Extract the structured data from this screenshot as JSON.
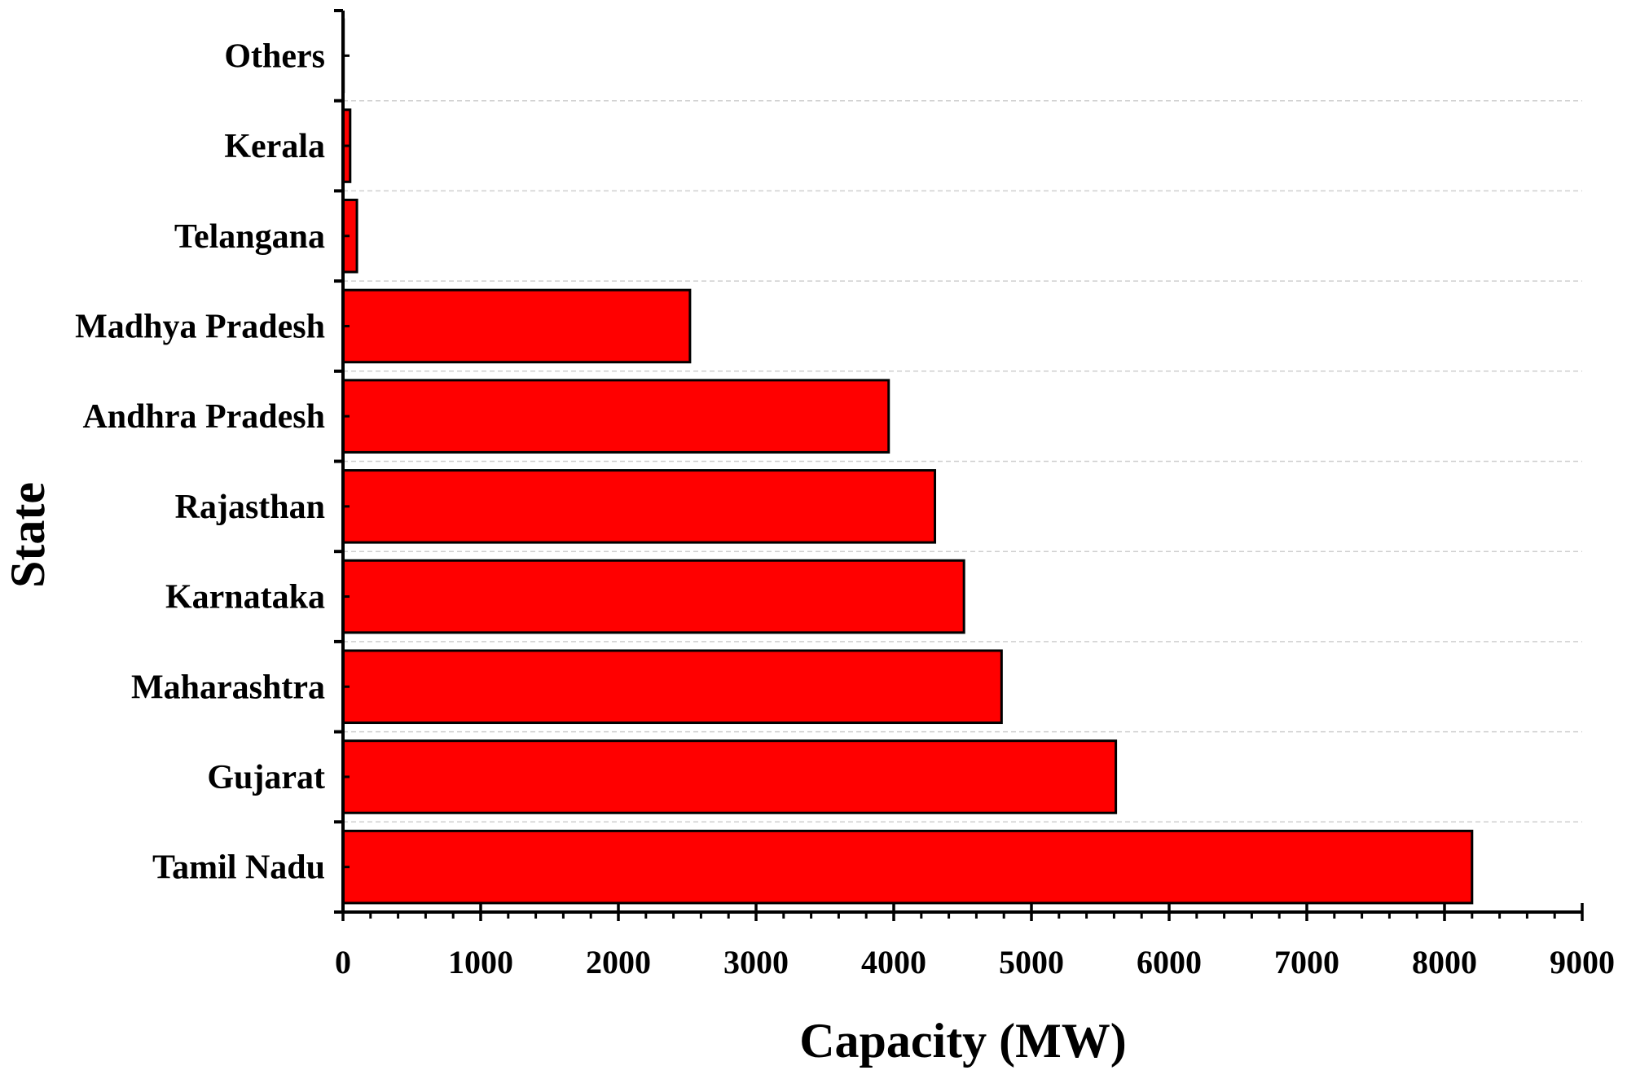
{
  "chart_data": {
    "type": "bar",
    "orientation": "horizontal",
    "title": "",
    "xlabel": "Capacity (MW)",
    "ylabel": "State",
    "xlim": [
      0,
      9000
    ],
    "x_major_ticks": [
      0,
      1000,
      2000,
      3000,
      4000,
      5000,
      6000,
      7000,
      8000,
      9000
    ],
    "x_minor_step": 200,
    "grid": "dashed horizontal separators",
    "categories": [
      "Tamil Nadu",
      "Gujarat",
      "Maharashtra",
      "Karnataka",
      "Rajasthan",
      "Andhra Pradesh",
      "Madhya Pradesh",
      "Telangana",
      "Kerala",
      "Others"
    ],
    "values": [
      8200,
      5613,
      4783,
      4510,
      4299,
      3963,
      2520,
      101,
      52,
      4
    ],
    "bar_color": "#ff0000",
    "bar_edge_color": "#000000"
  }
}
